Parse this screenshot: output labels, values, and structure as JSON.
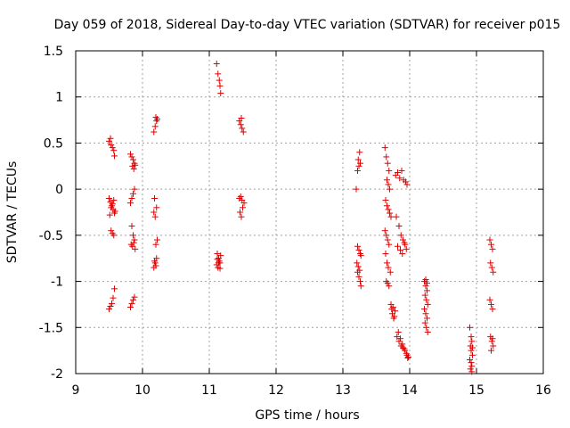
{
  "chart_data": {
    "type": "scatter",
    "title": "Day 059 of 2018, Sidereal Day-to-day VTEC variation (SDTVAR) for receiver p015",
    "xlabel": "GPS time / hours",
    "ylabel": "SDTVAR / TECUs",
    "xlim": [
      9,
      16
    ],
    "ylim": [
      -2,
      1.5
    ],
    "xticks": [
      9,
      10,
      11,
      12,
      13,
      14,
      15,
      16
    ],
    "yticks": [
      -2,
      -1.5,
      -1,
      -0.5,
      0,
      0.5,
      1,
      1.5
    ],
    "xtick_labels": [
      "9",
      "10",
      "11",
      "12",
      "13",
      "14",
      "15",
      "16"
    ],
    "ytick_labels": [
      "-2",
      "-1.5",
      "-1",
      "-0.5",
      "0",
      "0.5",
      "1",
      "1.5"
    ],
    "grid": true,
    "marker": "+",
    "color": "#e00000",
    "series": [
      {
        "name": "SDTVAR",
        "x": [
          9.5,
          9.52,
          9.53,
          9.55,
          9.57,
          9.58,
          9.5,
          9.52,
          9.54,
          9.56,
          9.58,
          9.51,
          9.53,
          9.55,
          9.57,
          9.59,
          9.53,
          9.55,
          9.57,
          9.5,
          9.52,
          9.54,
          9.56,
          9.58,
          9.82,
          9.84,
          9.86,
          9.88,
          9.85,
          9.87,
          9.89,
          9.82,
          9.84,
          9.86,
          9.88,
          9.84,
          9.86,
          9.88,
          9.83,
          9.85,
          9.87,
          9.89,
          9.82,
          9.84,
          9.86,
          9.88,
          10.17,
          10.19,
          10.21,
          10.2,
          10.22,
          10.17,
          10.19,
          10.21,
          10.18,
          10.2,
          10.22,
          10.17,
          10.19,
          10.21,
          10.18,
          10.2,
          11.11,
          11.13,
          11.15,
          11.16,
          11.17,
          11.12,
          11.14,
          11.16,
          11.11,
          11.13,
          11.15,
          11.17,
          11.12,
          11.14,
          11.16,
          11.45,
          11.47,
          11.49,
          11.51,
          11.48,
          11.46,
          11.48,
          11.5,
          11.52,
          11.45,
          11.47,
          11.49,
          13.2,
          13.22,
          13.24,
          13.26,
          13.23,
          13.25,
          13.22,
          13.24,
          13.26,
          13.27,
          13.21,
          13.23,
          13.25,
          13.22,
          13.24,
          13.26,
          13.27,
          13.63,
          13.65,
          13.67,
          13.69,
          13.66,
          13.68,
          13.7,
          13.64,
          13.66,
          13.68,
          13.7,
          13.72,
          13.63,
          13.65,
          13.67,
          13.69,
          13.64,
          13.66,
          13.68,
          13.71,
          13.65,
          13.67,
          13.69,
          13.72,
          13.73,
          13.74,
          13.76,
          13.78,
          13.75,
          13.77,
          13.79,
          13.82,
          13.85,
          13.88,
          13.91,
          13.94,
          13.96,
          13.8,
          13.84,
          13.87,
          13.9,
          13.93,
          13.82,
          13.86,
          13.89,
          13.92,
          13.95,
          13.81,
          13.84,
          13.87,
          13.9,
          13.93,
          13.96,
          13.98,
          13.83,
          13.86,
          13.89,
          13.92,
          13.95,
          13.97,
          14.22,
          14.24,
          14.26,
          14.23,
          14.25,
          14.27,
          14.22,
          14.24,
          14.26,
          14.23,
          14.25,
          14.27,
          14.24,
          14.26,
          14.9,
          14.92,
          14.93,
          14.91,
          14.92,
          14.94,
          14.9,
          14.92,
          14.93,
          14.91,
          14.93,
          14.94,
          15.2,
          15.22,
          15.24,
          15.21,
          15.23,
          15.25,
          15.2,
          15.22,
          15.24,
          15.21,
          15.23,
          15.25,
          15.22,
          15.24
        ],
        "y": [
          0.52,
          0.55,
          0.48,
          0.45,
          0.42,
          0.36,
          -0.1,
          -0.14,
          -0.18,
          -0.22,
          -0.26,
          -0.28,
          -0.2,
          -0.16,
          -0.12,
          -0.24,
          -0.45,
          -0.48,
          -0.5,
          -1.3,
          -1.27,
          -1.24,
          -1.18,
          -1.08,
          0.38,
          0.35,
          0.32,
          0.28,
          0.25,
          0.22,
          0.26,
          -0.15,
          -0.1,
          -0.05,
          0.0,
          -0.4,
          -0.5,
          -0.55,
          -0.6,
          -0.62,
          -0.58,
          -0.65,
          -1.28,
          -1.24,
          -1.2,
          -1.17,
          0.62,
          0.68,
          0.74,
          0.78,
          0.76,
          -0.25,
          -0.3,
          -0.2,
          -0.1,
          -0.6,
          -0.55,
          -0.85,
          -0.8,
          -0.75,
          -0.78,
          -0.83,
          1.36,
          1.25,
          1.18,
          1.12,
          1.04,
          -0.7,
          -0.75,
          -0.8,
          -0.82,
          -0.85,
          -0.78,
          -0.72,
          -0.76,
          -0.8,
          -0.86,
          0.74,
          0.7,
          0.66,
          0.62,
          0.77,
          -0.25,
          -0.3,
          -0.2,
          -0.15,
          -0.1,
          -0.08,
          -0.12,
          0.0,
          0.2,
          0.25,
          0.28,
          0.32,
          0.4,
          -0.62,
          -0.66,
          -0.7,
          -0.72,
          -0.8,
          -0.84,
          -0.88,
          -0.9,
          -0.95,
          -1.0,
          -1.05,
          0.45,
          0.35,
          0.28,
          0.2,
          0.1,
          0.05,
          0.0,
          -0.12,
          -0.18,
          -0.22,
          -0.26,
          -0.3,
          -0.45,
          -0.5,
          -0.55,
          -0.6,
          -0.7,
          -0.8,
          -0.85,
          -0.9,
          -1.0,
          -1.02,
          -1.05,
          -1.25,
          -1.3,
          -1.35,
          -1.4,
          -1.32,
          -1.28,
          -1.38,
          0.15,
          0.18,
          0.12,
          0.2,
          0.1,
          0.08,
          0.05,
          -0.3,
          -0.4,
          -0.5,
          -0.55,
          -0.6,
          -0.62,
          -0.66,
          -0.7,
          -0.58,
          -0.65,
          -1.6,
          -1.65,
          -1.7,
          -1.72,
          -1.75,
          -1.8,
          -1.82,
          -1.55,
          -1.62,
          -1.68,
          -1.73,
          -1.78,
          -1.83,
          -1.0,
          -1.05,
          -1.1,
          -1.15,
          -1.2,
          -1.25,
          -1.3,
          -1.35,
          -1.4,
          -1.45,
          -1.5,
          -1.55,
          -0.98,
          -1.02,
          -1.5,
          -1.6,
          -1.65,
          -1.7,
          -1.75,
          -1.8,
          -1.85,
          -1.88,
          -1.92,
          -1.95,
          -1.98,
          -1.72,
          -0.55,
          -0.6,
          -0.65,
          -0.8,
          -0.85,
          -0.9,
          -1.2,
          -1.25,
          -1.3,
          -1.6,
          -1.65,
          -1.7,
          -1.75,
          -1.62
        ]
      }
    ]
  }
}
